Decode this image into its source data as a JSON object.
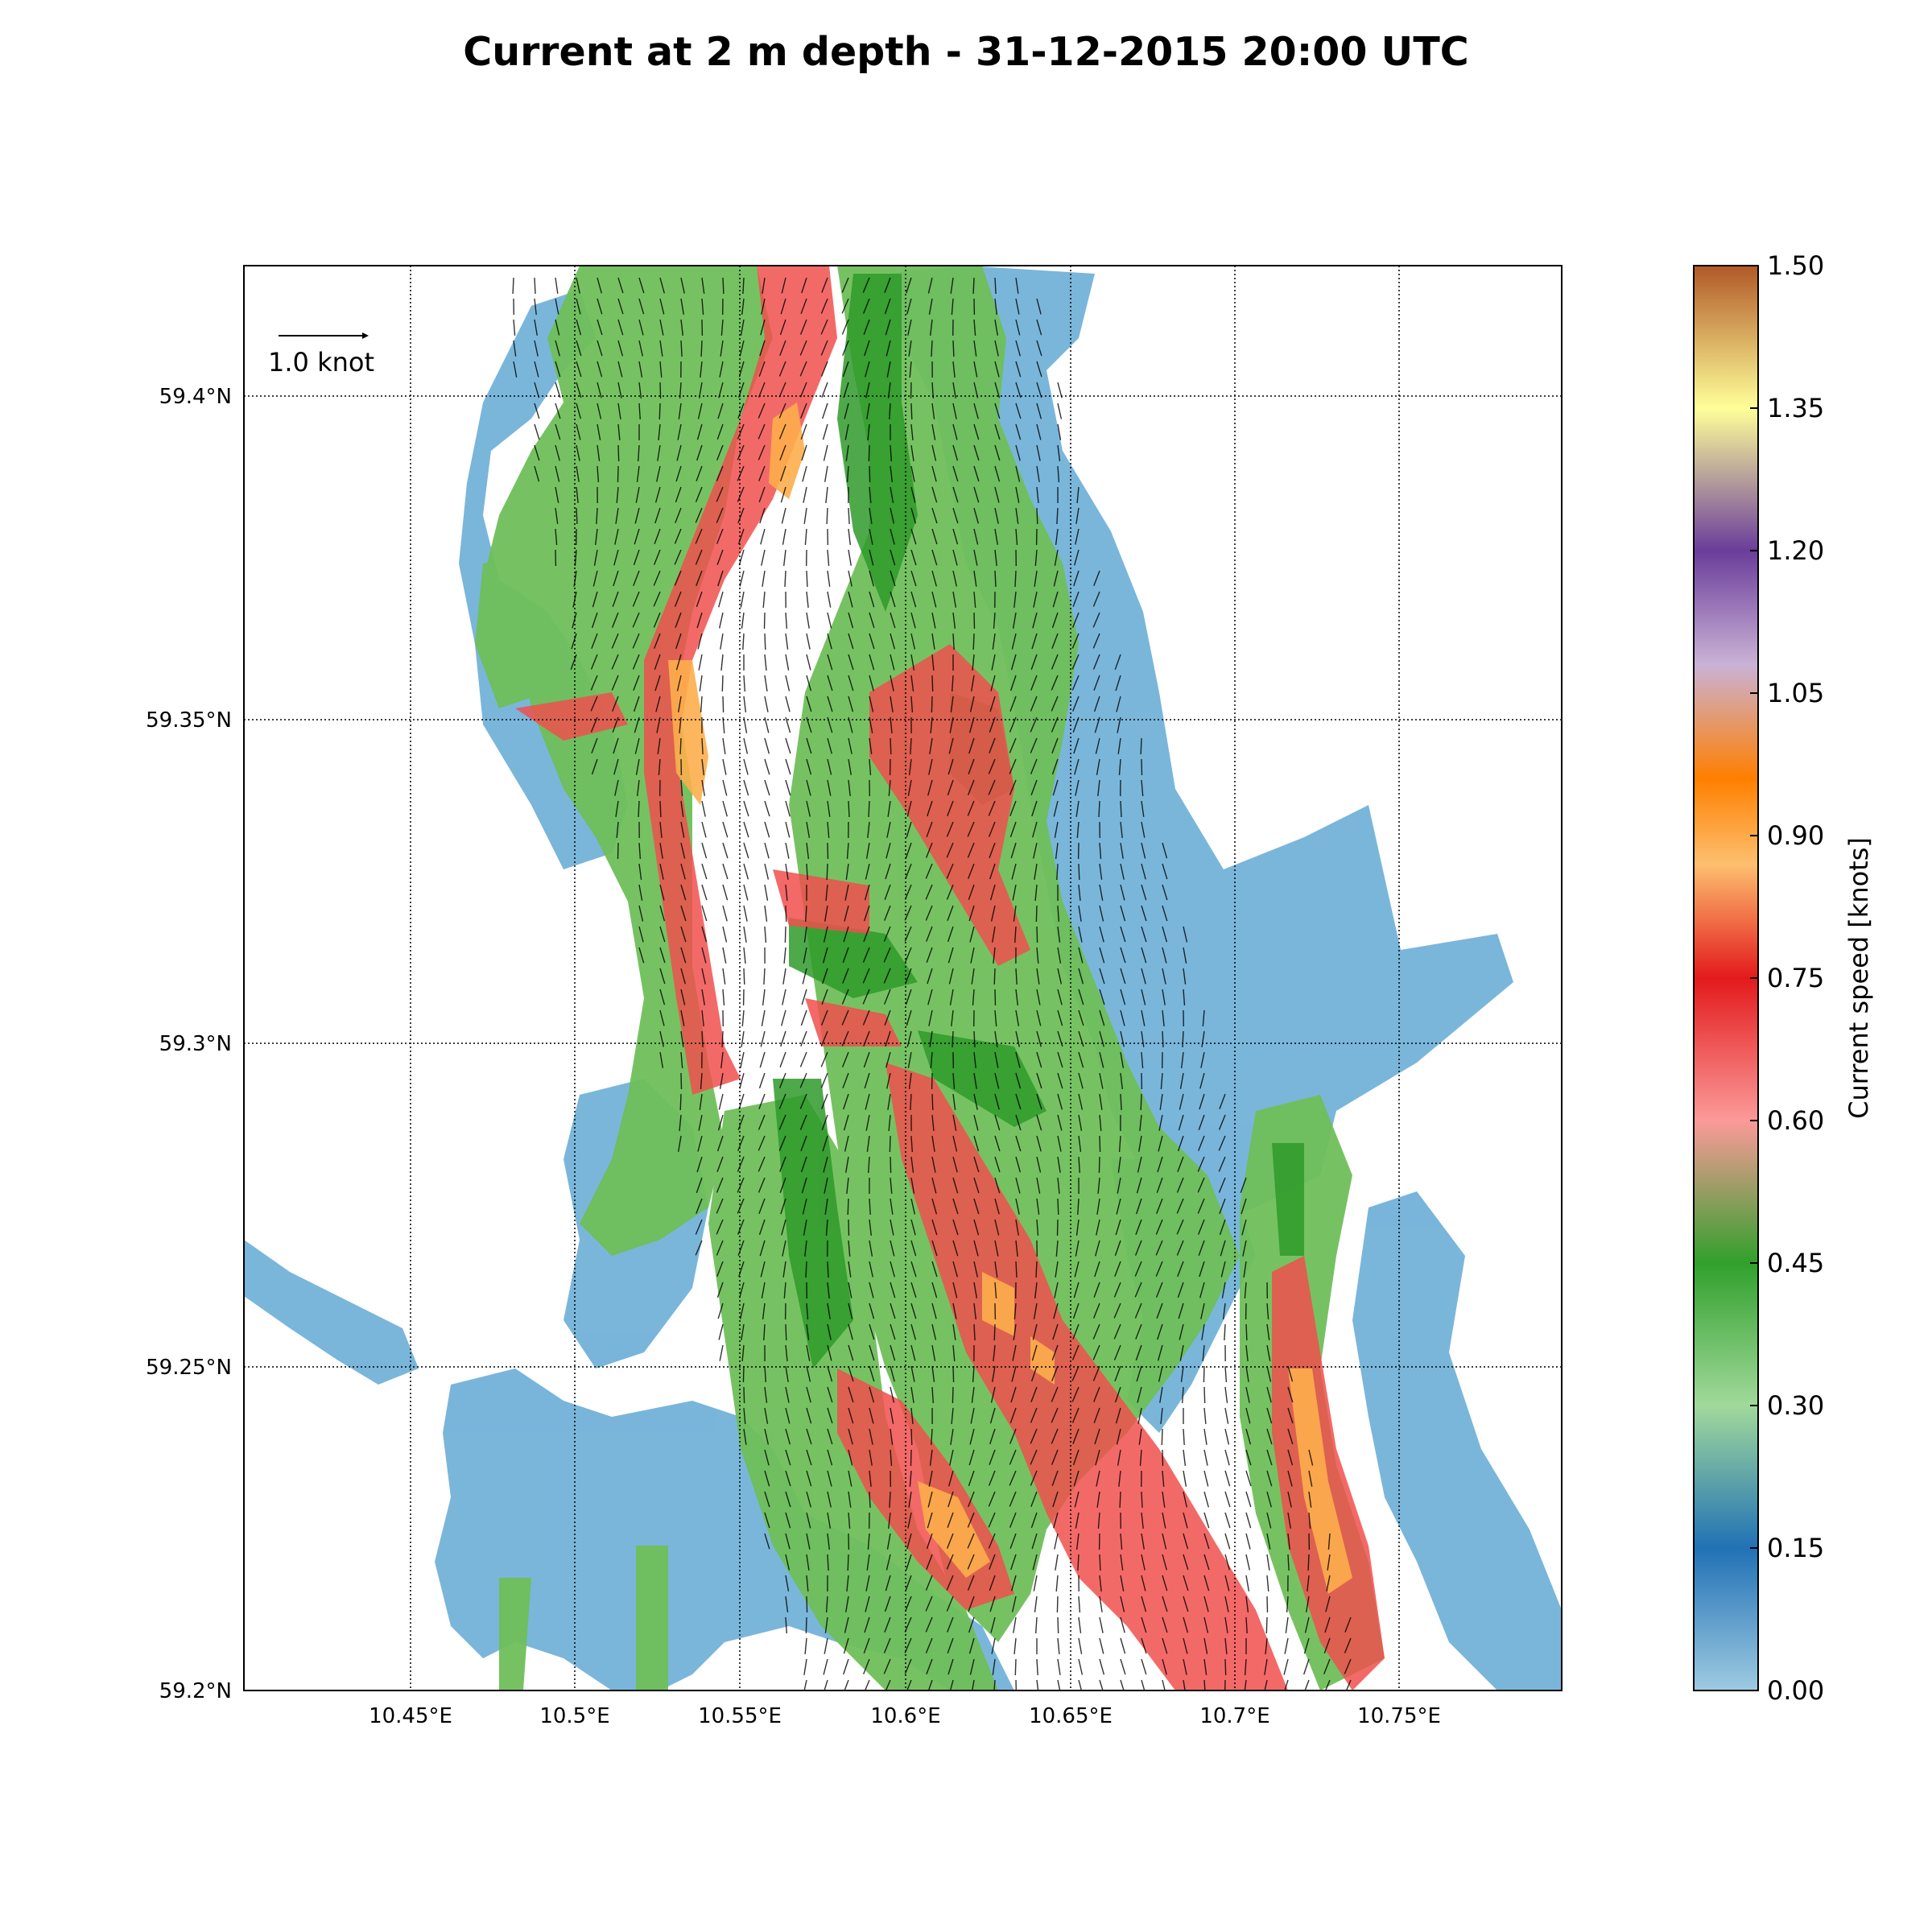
{
  "title": "Current at 2 m depth - 31-12-2015 20:00 UTC",
  "map": {
    "lon_ticks": [
      "10.45°E",
      "10.5°E",
      "10.55°E",
      "10.6°E",
      "10.65°E",
      "10.7°E",
      "10.75°E"
    ],
    "lat_ticks": [
      "59.2°N",
      "59.25°N",
      "59.3°N",
      "59.35°N",
      "59.4°N"
    ],
    "lon_range": [
      10.4,
      10.8
    ],
    "lat_range": [
      59.2,
      59.42
    ],
    "grid": "dotted"
  },
  "reference_arrow": {
    "label": "1.0 knot",
    "value": 1.0
  },
  "colorbar": {
    "label": "Current speed [knots]",
    "ticks": [
      "0.00",
      "0.15",
      "0.30",
      "0.45",
      "0.60",
      "0.75",
      "0.90",
      "1.05",
      "1.20",
      "1.35",
      "1.50"
    ],
    "range": [
      0,
      1.5
    ],
    "colors": [
      "#9ecae1",
      "#2171b5",
      "#a1d99b",
      "#31a02c",
      "#fb9a99",
      "#e31a1c",
      "#fdbf6f",
      "#ff7f00",
      "#cab2d6",
      "#6a3d9a",
      "#ffff99",
      "#b15928"
    ]
  },
  "chart_data": {
    "type": "heatmap",
    "title": "Current at 2 m depth - 31-12-2015 20:00 UTC",
    "xlabel": "",
    "ylabel": "",
    "xlim": [
      10.4,
      10.8
    ],
    "ylim": [
      59.2,
      59.42
    ],
    "colorbar_label": "Current speed [knots]",
    "colorbar_range": [
      0,
      1.5
    ],
    "reference_vector": "1.0 knot"
  }
}
